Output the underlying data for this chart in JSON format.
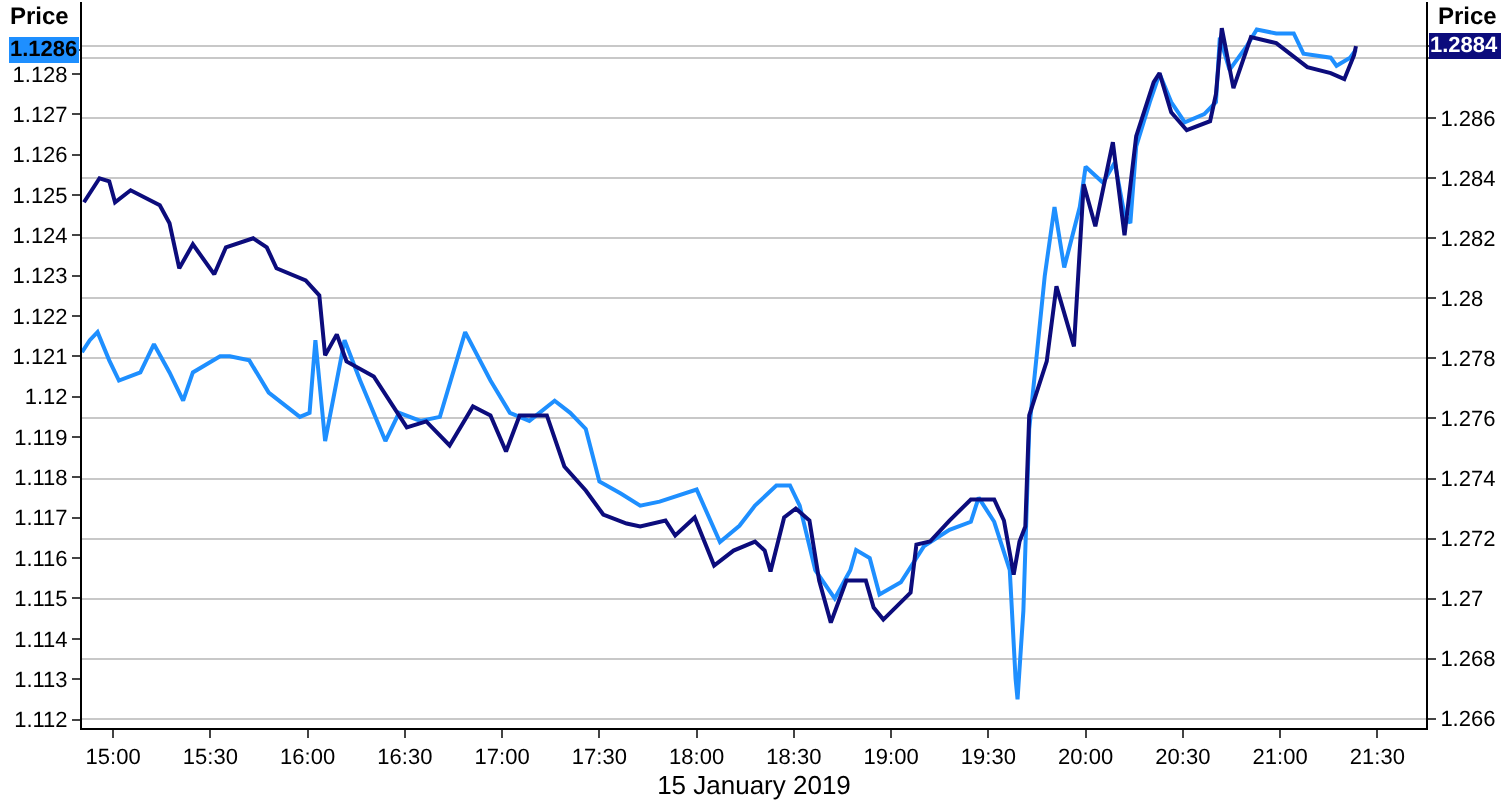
{
  "chart_data": {
    "type": "line",
    "xlabel": "15 January 2019",
    "ylabel": "Price",
    "y2label": "Price",
    "xlim": [
      14.84,
      21.75
    ],
    "xticks": [
      {
        "value": 15,
        "label": "15:00"
      },
      {
        "value": 15.5,
        "label": "15:30"
      },
      {
        "value": 16,
        "label": "16:00"
      },
      {
        "value": 16.5,
        "label": "16:30"
      },
      {
        "value": 17,
        "label": "17:00"
      },
      {
        "value": 17.5,
        "label": "17:30"
      },
      {
        "value": 18,
        "label": "18:00"
      },
      {
        "value": 18.5,
        "label": "18:30"
      },
      {
        "value": 19,
        "label": "19:00"
      },
      {
        "value": 19.5,
        "label": "19:30"
      },
      {
        "value": 20,
        "label": "20:00"
      },
      {
        "value": 20.5,
        "label": "20:30"
      },
      {
        "value": 21,
        "label": "21:00"
      },
      {
        "value": 21.5,
        "label": "21:30"
      }
    ],
    "ylim": [
      1.11179,
      1.12978
    ],
    "yticks": [
      1.112,
      1.113,
      1.114,
      1.115,
      1.116,
      1.117,
      1.118,
      1.119,
      1.12,
      1.121,
      1.122,
      1.123,
      1.124,
      1.125,
      1.126,
      1.127,
      1.128,
      1.1286
    ],
    "y2lim": [
      1.26569,
      1.28987
    ],
    "y2ticks": [
      1.266,
      1.268,
      1.27,
      1.272,
      1.274,
      1.276,
      1.278,
      1.28,
      1.282,
      1.284,
      1.286,
      {
        "value": 1.288,
        "label": null
      },
      1.2884
    ],
    "grid": "y",
    "line_style": "solid",
    "series": [
      {
        "color": "#1e8fff",
        "x": [
          14.84,
          14.88,
          14.92,
          14.98,
          15.03,
          15.14,
          15.21,
          15.29,
          15.36,
          15.41,
          15.55,
          15.6,
          15.7,
          15.8,
          15.96,
          16.01,
          16.04,
          16.09,
          16.19,
          16.27,
          16.4,
          16.47,
          16.58,
          16.68,
          16.81,
          16.94,
          17.04,
          17.14,
          17.27,
          17.35,
          17.43,
          17.5,
          17.61,
          17.71,
          17.81,
          18.0,
          18.12,
          18.22,
          18.3,
          18.41,
          18.48,
          18.53,
          18.61,
          18.71,
          18.79,
          18.82,
          18.89,
          18.94,
          19.05,
          19.17,
          19.3,
          19.41,
          19.45,
          19.53,
          19.61,
          19.64,
          19.65,
          19.68,
          19.71,
          19.79,
          19.84,
          19.89,
          19.97,
          20.0,
          20.09,
          20.15,
          20.2,
          20.23,
          20.26,
          20.33,
          20.38,
          20.44,
          20.51,
          20.61,
          20.67,
          20.69,
          20.74,
          20.83,
          20.88,
          20.98,
          21.07,
          21.12,
          21.26,
          21.29,
          21.36,
          21.39
        ],
        "values": [
          1.1211,
          1.1214,
          1.1216,
          1.1209,
          1.1204,
          1.1206,
          1.1213,
          1.1206,
          1.1199,
          1.1206,
          1.121,
          1.121,
          1.1209,
          1.1201,
          1.1195,
          1.1196,
          1.1214,
          1.1189,
          1.1214,
          1.1204,
          1.1189,
          1.1196,
          1.1194,
          1.1195,
          1.1216,
          1.1204,
          1.1196,
          1.1194,
          1.1199,
          1.1196,
          1.1192,
          1.1179,
          1.1176,
          1.1173,
          1.1174,
          1.1177,
          1.1164,
          1.1168,
          1.1173,
          1.1178,
          1.1178,
          1.1173,
          1.1157,
          1.115,
          1.1157,
          1.1162,
          1.116,
          1.1151,
          1.1154,
          1.1163,
          1.1167,
          1.1169,
          1.1175,
          1.1169,
          1.1157,
          1.113,
          1.1125,
          1.1147,
          1.1192,
          1.123,
          1.1247,
          1.1232,
          1.1247,
          1.1257,
          1.1253,
          1.1258,
          1.1245,
          1.1243,
          1.1262,
          1.1273,
          1.128,
          1.1273,
          1.1268,
          1.127,
          1.1273,
          1.1289,
          1.1281,
          1.1287,
          1.1291,
          1.129,
          1.129,
          1.1285,
          1.1284,
          1.1282,
          1.1284,
          1.1286
        ]
      },
      {
        "color": "#0c0c7c",
        "axis": "y2",
        "x": [
          14.85,
          14.93,
          14.98,
          15.01,
          15.09,
          15.24,
          15.29,
          15.34,
          15.41,
          15.52,
          15.58,
          15.72,
          15.79,
          15.84,
          15.99,
          16.06,
          16.09,
          16.15,
          16.2,
          16.34,
          16.51,
          16.61,
          16.73,
          16.85,
          16.94,
          17.02,
          17.09,
          17.23,
          17.32,
          17.43,
          17.52,
          17.64,
          17.71,
          17.84,
          17.89,
          17.99,
          18.09,
          18.19,
          18.3,
          18.35,
          18.38,
          18.45,
          18.51,
          18.58,
          18.63,
          18.69,
          18.77,
          18.87,
          18.91,
          18.96,
          19.1,
          19.13,
          19.2,
          19.3,
          19.41,
          19.53,
          19.58,
          19.63,
          19.66,
          19.69,
          19.71,
          19.8,
          19.85,
          19.94,
          19.99,
          20.05,
          20.14,
          20.2,
          20.26,
          20.35,
          20.38,
          20.44,
          20.52,
          20.64,
          20.67,
          20.7,
          20.76,
          20.85,
          20.98,
          21.14,
          21.26,
          21.33,
          21.38,
          21.39
        ],
        "values": [
          1.2832,
          1.284,
          1.2839,
          1.2832,
          1.2836,
          1.2831,
          1.2825,
          1.281,
          1.2818,
          1.2808,
          1.2817,
          1.282,
          1.2817,
          1.281,
          1.2806,
          1.2801,
          1.2781,
          1.2788,
          1.2779,
          1.2774,
          1.2757,
          1.2759,
          1.2751,
          1.2764,
          1.2761,
          1.2749,
          1.2761,
          1.2761,
          1.2744,
          1.2736,
          1.2728,
          1.2725,
          1.2724,
          1.2726,
          1.2721,
          1.2727,
          1.2711,
          1.2716,
          1.2719,
          1.2716,
          1.2709,
          1.2727,
          1.273,
          1.2726,
          1.2706,
          1.2692,
          1.2706,
          1.2706,
          1.2697,
          1.2693,
          1.2702,
          1.2718,
          1.2719,
          1.2726,
          1.2733,
          1.2733,
          1.2726,
          1.2708,
          1.2719,
          1.2724,
          1.2761,
          1.2779,
          1.2804,
          1.2784,
          1.2838,
          1.2824,
          1.2852,
          1.2821,
          1.2854,
          1.2872,
          1.2875,
          1.2862,
          1.2856,
          1.2859,
          1.2868,
          1.289,
          1.287,
          1.2887,
          1.2885,
          1.2877,
          1.2875,
          1.2873,
          1.2881,
          1.2884
        ]
      }
    ]
  }
}
